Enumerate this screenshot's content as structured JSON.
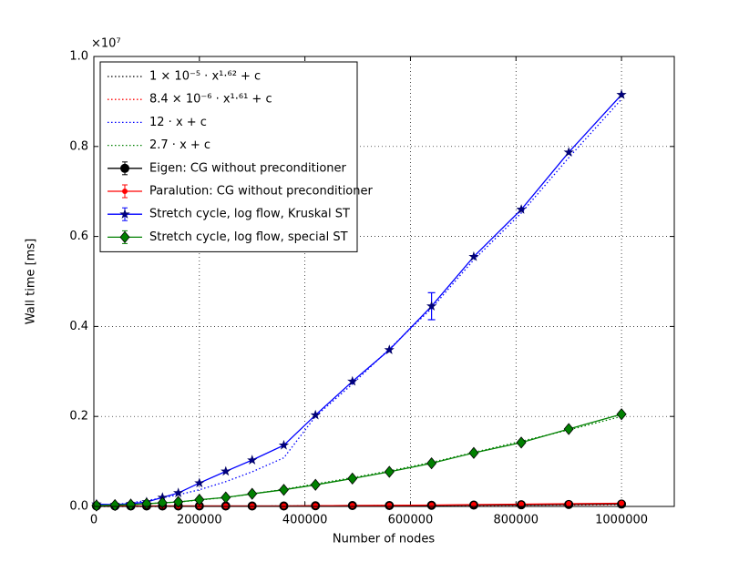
{
  "chart_data": {
    "type": "line",
    "xlabel": "Number of nodes",
    "ylabel": "Wall time [ms]",
    "y_offset_label": "×10⁷",
    "x": [
      5000,
      40000,
      70000,
      100000,
      130000,
      160000,
      200000,
      250000,
      300000,
      360000,
      420000,
      490000,
      560000,
      640000,
      720000,
      810000,
      900000,
      1000000
    ],
    "xlim": [
      0,
      1100000
    ],
    "xticks": [
      0,
      200000,
      400000,
      600000,
      800000,
      1000000
    ],
    "ylim": [
      0,
      1.0
    ],
    "yticks": [
      {
        "value": 0,
        "label": "0.0"
      },
      0.2,
      0.4,
      0.6,
      0.8,
      {
        "value": 1.0,
        "label": "1.0"
      }
    ],
    "grid": true,
    "legend": "upper left",
    "series": [
      {
        "name": "1 × 10⁻⁵ · x¹·⁶² + c",
        "color": "#000000",
        "style": "dotted",
        "marker": "none",
        "values": [
          0,
          0,
          0.0001,
          0.0001,
          0.0002,
          0.0003,
          0.0004,
          0.0006,
          0.0007,
          0.001,
          0.0013,
          0.0016,
          0.002,
          0.0025,
          0.0031,
          0.0037,
          0.0044,
          0.0052
        ]
      },
      {
        "name": "8.4 × 10⁻⁶ · x¹·⁶¹ + c",
        "color": "#ff0000",
        "style": "dotted",
        "marker": "none",
        "values": [
          0,
          0,
          0.0001,
          0.0001,
          0.0001,
          0.0002,
          0.0003,
          0.0004,
          0.0005,
          0.0007,
          0.0009,
          0.0012,
          0.0015,
          0.0018,
          0.0022,
          0.0027,
          0.0032,
          0.0038
        ]
      },
      {
        "name": "12 · x + c",
        "color": "#0000ff",
        "style": "dotted",
        "marker": "none",
        "values": [
          0,
          0.004,
          0.008,
          0.013,
          0.019,
          0.026,
          0.037,
          0.055,
          0.077,
          0.108,
          0.2,
          0.272,
          0.35,
          0.44,
          0.548,
          0.652,
          0.775,
          0.905
        ]
      },
      {
        "name": "2.7 · x + c",
        "color": "#008000",
        "style": "dotted",
        "marker": "none",
        "values": [
          0,
          0.002,
          0.004,
          0.006,
          0.008,
          0.01,
          0.014,
          0.02,
          0.028,
          0.038,
          0.05,
          0.064,
          0.079,
          0.098,
          0.12,
          0.145,
          0.17,
          0.2
        ]
      },
      {
        "name": "Eigen: CG without preconditioner",
        "color": "#000000",
        "style": "solid",
        "marker": "circle",
        "values": [
          0.001,
          0.001,
          0.001,
          0.001,
          0.001,
          0.001,
          0.001,
          0.001,
          0.001,
          0.001,
          0.0015,
          0.002,
          0.002,
          0.0025,
          0.003,
          0.0037,
          0.0044,
          0.0052
        ]
      },
      {
        "name": "Paralution: CG without preconditioner",
        "color": "#ff0000",
        "style": "solid",
        "marker": "point",
        "values": [
          0.001,
          0.001,
          0.001,
          0.001,
          0.001,
          0.001,
          0.001,
          0.001,
          0.001,
          0.001,
          0.0015,
          0.002,
          0.0025,
          0.003,
          0.004,
          0.005,
          0.006,
          0.007
        ]
      },
      {
        "name": "Stretch cycle, log flow, Kruskal ST",
        "color": "#0000ff",
        "style": "solid",
        "marker": "star",
        "values": [
          0.005,
          0.004,
          0.006,
          0.01,
          0.02,
          0.03,
          0.052,
          0.078,
          0.103,
          0.136,
          0.203,
          0.278,
          0.348,
          0.445,
          0.555,
          0.66,
          0.787,
          0.915
        ],
        "errors": [
          null,
          null,
          null,
          null,
          null,
          null,
          null,
          null,
          null,
          null,
          null,
          null,
          null,
          0.03,
          null,
          null,
          null,
          null
        ]
      },
      {
        "name": "Stretch cycle, log flow, special ST",
        "color": "#008000",
        "style": "solid",
        "marker": "diamond",
        "values": [
          0.002,
          0.003,
          0.004,
          0.006,
          0.008,
          0.01,
          0.015,
          0.02,
          0.028,
          0.037,
          0.048,
          0.062,
          0.077,
          0.096,
          0.119,
          0.142,
          0.172,
          0.205
        ]
      }
    ]
  }
}
